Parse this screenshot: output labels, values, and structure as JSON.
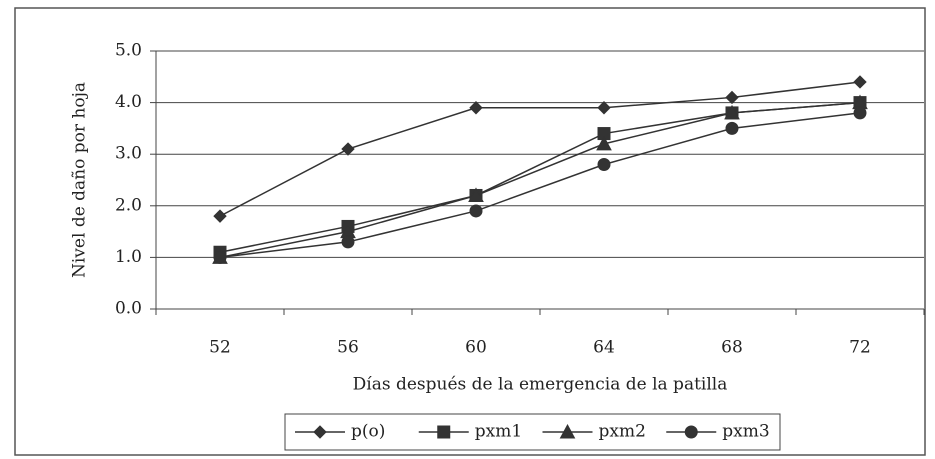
{
  "chart_data": {
    "type": "line",
    "x_label": "Días después de la emergencia de la patilla",
    "y_label": "Nivel de daño por hoja",
    "categories": [
      "52",
      "56",
      "60",
      "64",
      "68",
      "72"
    ],
    "series": [
      {
        "name": "p(o)",
        "color": "#333333",
        "marker": "diamond",
        "values": [
          1.8,
          3.1,
          3.9,
          3.9,
          4.1,
          4.4
        ]
      },
      {
        "name": "pxm1",
        "color": "#333333",
        "marker": "square",
        "values": [
          1.1,
          1.6,
          2.2,
          3.4,
          3.8,
          4.0
        ]
      },
      {
        "name": "pxm2",
        "color": "#333333",
        "marker": "triangle",
        "values": [
          1.0,
          1.5,
          2.2,
          3.2,
          3.8,
          4.0
        ]
      },
      {
        "name": "pxm3",
        "color": "#333333",
        "marker": "circle",
        "values": [
          1.0,
          1.3,
          1.9,
          2.8,
          3.5,
          3.8
        ]
      }
    ],
    "ylim": [
      0,
      5
    ],
    "yticks": [
      {
        "value": 0,
        "label": "0.0"
      },
      {
        "value": 1,
        "label": "1.0"
      },
      {
        "value": 2,
        "label": "2.0"
      },
      {
        "value": 3,
        "label": "3.0"
      },
      {
        "value": 4,
        "label": "4.0"
      },
      {
        "value": 5,
        "label": "5.0"
      }
    ],
    "grid": true,
    "legend": "bottom"
  }
}
